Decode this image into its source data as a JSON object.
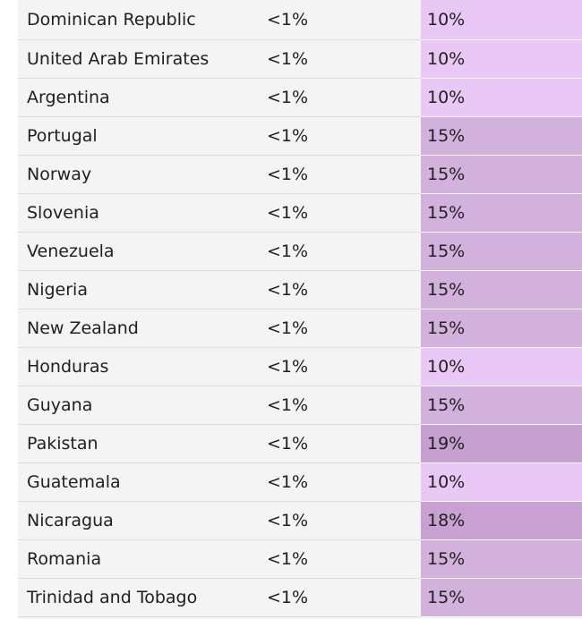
{
  "colors": {
    "rate_10": "#eac8f5",
    "rate_15": "#d3b1dd",
    "rate_18": "#c8a1d2",
    "rate_19": "#c59fcf",
    "row_background": "#f4f4f4"
  },
  "rows": [
    {
      "country": "Dominican Republic",
      "share": "<1%",
      "rate": "10%",
      "level": "r10"
    },
    {
      "country": "United Arab Emirates",
      "share": "<1%",
      "rate": "10%",
      "level": "r10"
    },
    {
      "country": "Argentina",
      "share": "<1%",
      "rate": "10%",
      "level": "r10"
    },
    {
      "country": "Portugal",
      "share": "<1%",
      "rate": "15%",
      "level": "r15"
    },
    {
      "country": "Norway",
      "share": "<1%",
      "rate": "15%",
      "level": "r15"
    },
    {
      "country": "Slovenia",
      "share": "<1%",
      "rate": "15%",
      "level": "r15"
    },
    {
      "country": "Venezuela",
      "share": "<1%",
      "rate": "15%",
      "level": "r15"
    },
    {
      "country": "Nigeria",
      "share": "<1%",
      "rate": "15%",
      "level": "r15"
    },
    {
      "country": "New Zealand",
      "share": "<1%",
      "rate": "15%",
      "level": "r15"
    },
    {
      "country": "Honduras",
      "share": "<1%",
      "rate": "10%",
      "level": "r10"
    },
    {
      "country": "Guyana",
      "share": "<1%",
      "rate": "15%",
      "level": "r15"
    },
    {
      "country": "Pakistan",
      "share": "<1%",
      "rate": "19%",
      "level": "r19"
    },
    {
      "country": "Guatemala",
      "share": "<1%",
      "rate": "10%",
      "level": "r10"
    },
    {
      "country": "Nicaragua",
      "share": "<1%",
      "rate": "18%",
      "level": "r18"
    },
    {
      "country": "Romania",
      "share": "<1%",
      "rate": "15%",
      "level": "r15"
    },
    {
      "country": "Trinidad and Tobago",
      "share": "<1%",
      "rate": "15%",
      "level": "r15"
    }
  ]
}
